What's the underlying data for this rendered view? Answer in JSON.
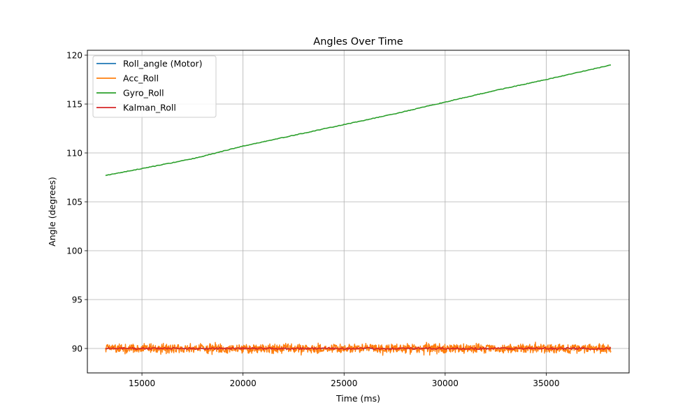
{
  "chart_data": {
    "type": "line",
    "title": "Angles Over Time",
    "xlabel": "Time (ms)",
    "ylabel": "Angle (degrees)",
    "xlim": [
      12300,
      39100
    ],
    "ylim": [
      87.5,
      120.5
    ],
    "xticks": [
      15000,
      20000,
      25000,
      30000,
      35000
    ],
    "xtick_labels": [
      "15000",
      "20000",
      "25000",
      "30000",
      "35000"
    ],
    "yticks": [
      90,
      95,
      100,
      105,
      110,
      115,
      120
    ],
    "ytick_labels": [
      "90",
      "95",
      "100",
      "105",
      "110",
      "115",
      "120"
    ],
    "grid": true,
    "legend_position": "top-left",
    "series": [
      {
        "name": "Roll_angle (Motor)",
        "color": "#1f77b4",
        "style": "constant",
        "x": [
          13200,
          38200
        ],
        "y": [
          90.0,
          90.0
        ]
      },
      {
        "name": "Acc_Roll",
        "color": "#ff7f0e",
        "style": "noisy",
        "x": [
          13200,
          38200
        ],
        "y_center": 90.0,
        "y_range": [
          89.0,
          90.9
        ]
      },
      {
        "name": "Gyro_Roll",
        "color": "#2ca02c",
        "style": "line",
        "x": [
          13200,
          15000,
          17500,
          20000,
          22500,
          25000,
          27500,
          30000,
          32500,
          35000,
          38200
        ],
        "y": [
          107.7,
          108.4,
          109.4,
          110.7,
          111.8,
          112.9,
          114.0,
          115.2,
          116.4,
          117.5,
          119.0
        ]
      },
      {
        "name": "Kalman_Roll",
        "color": "#d62728",
        "style": "smooth-noise",
        "x": [
          13200,
          38200
        ],
        "y_center": 90.0,
        "y_range": [
          89.9,
          90.1
        ]
      }
    ]
  }
}
